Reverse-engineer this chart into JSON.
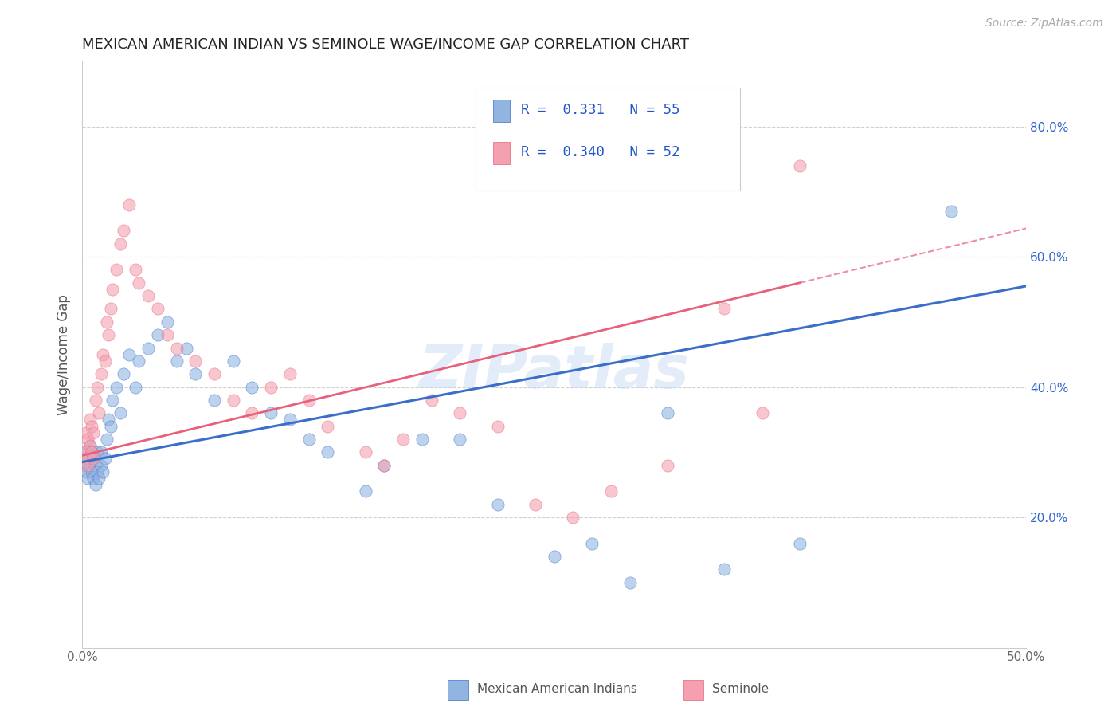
{
  "title": "MEXICAN AMERICAN INDIAN VS SEMINOLE WAGE/INCOME GAP CORRELATION CHART",
  "source": "Source: ZipAtlas.com",
  "ylabel": "Wage/Income Gap",
  "xlim": [
    0.0,
    0.5
  ],
  "ylim": [
    0.0,
    0.9
  ],
  "xticks": [
    0.0,
    0.1,
    0.2,
    0.3,
    0.4,
    0.5
  ],
  "xticklabels": [
    "0.0%",
    "",
    "",
    "",
    "",
    "50.0%"
  ],
  "yticks_right": [
    0.2,
    0.4,
    0.6,
    0.8
  ],
  "ytick_labels_right": [
    "20.0%",
    "40.0%",
    "60.0%",
    "80.0%"
  ],
  "blue_color": "#92b4e0",
  "pink_color": "#f4a0b0",
  "blue_line_color": "#3b6ec8",
  "pink_line_color": "#e8607a",
  "watermark": "ZIPatlas",
  "legend_r_blue": "0.331",
  "legend_n_blue": "55",
  "legend_r_pink": "0.340",
  "legend_n_pink": "52",
  "legend_label_blue": "Mexican American Indians",
  "legend_label_pink": "Seminole",
  "blue_x": [
    0.001,
    0.002,
    0.002,
    0.003,
    0.003,
    0.004,
    0.004,
    0.005,
    0.005,
    0.006,
    0.006,
    0.007,
    0.007,
    0.008,
    0.008,
    0.009,
    0.01,
    0.01,
    0.011,
    0.012,
    0.013,
    0.014,
    0.015,
    0.016,
    0.018,
    0.02,
    0.022,
    0.025,
    0.028,
    0.03,
    0.035,
    0.04,
    0.045,
    0.05,
    0.055,
    0.06,
    0.07,
    0.08,
    0.09,
    0.1,
    0.11,
    0.12,
    0.13,
    0.15,
    0.16,
    0.18,
    0.2,
    0.22,
    0.25,
    0.27,
    0.29,
    0.31,
    0.34,
    0.38,
    0.46
  ],
  "blue_y": [
    0.28,
    0.27,
    0.3,
    0.26,
    0.29,
    0.28,
    0.31,
    0.27,
    0.3,
    0.26,
    0.29,
    0.25,
    0.28,
    0.27,
    0.3,
    0.26,
    0.28,
    0.3,
    0.27,
    0.29,
    0.32,
    0.35,
    0.34,
    0.38,
    0.4,
    0.36,
    0.42,
    0.45,
    0.4,
    0.44,
    0.46,
    0.48,
    0.5,
    0.44,
    0.46,
    0.42,
    0.38,
    0.44,
    0.4,
    0.36,
    0.35,
    0.32,
    0.3,
    0.24,
    0.28,
    0.32,
    0.32,
    0.22,
    0.14,
    0.16,
    0.1,
    0.36,
    0.12,
    0.16,
    0.67
  ],
  "pink_x": [
    0.001,
    0.002,
    0.002,
    0.003,
    0.003,
    0.004,
    0.004,
    0.005,
    0.005,
    0.006,
    0.006,
    0.007,
    0.008,
    0.009,
    0.01,
    0.011,
    0.012,
    0.013,
    0.014,
    0.015,
    0.016,
    0.018,
    0.02,
    0.022,
    0.025,
    0.028,
    0.03,
    0.035,
    0.04,
    0.045,
    0.05,
    0.06,
    0.07,
    0.08,
    0.09,
    0.1,
    0.11,
    0.12,
    0.13,
    0.15,
    0.16,
    0.17,
    0.185,
    0.2,
    0.22,
    0.24,
    0.26,
    0.28,
    0.31,
    0.34,
    0.36,
    0.38
  ],
  "pink_y": [
    0.3,
    0.29,
    0.33,
    0.28,
    0.32,
    0.31,
    0.35,
    0.3,
    0.34,
    0.29,
    0.33,
    0.38,
    0.4,
    0.36,
    0.42,
    0.45,
    0.44,
    0.5,
    0.48,
    0.52,
    0.55,
    0.58,
    0.62,
    0.64,
    0.68,
    0.58,
    0.56,
    0.54,
    0.52,
    0.48,
    0.46,
    0.44,
    0.42,
    0.38,
    0.36,
    0.4,
    0.42,
    0.38,
    0.34,
    0.3,
    0.28,
    0.32,
    0.38,
    0.36,
    0.34,
    0.22,
    0.2,
    0.24,
    0.28,
    0.52,
    0.36,
    0.74
  ],
  "blue_line_x0": 0.0,
  "blue_line_y0": 0.285,
  "blue_line_x1": 0.5,
  "blue_line_y1": 0.555,
  "pink_line_x0": 0.0,
  "pink_line_y0": 0.295,
  "pink_line_x1": 0.38,
  "pink_line_y1": 0.56
}
